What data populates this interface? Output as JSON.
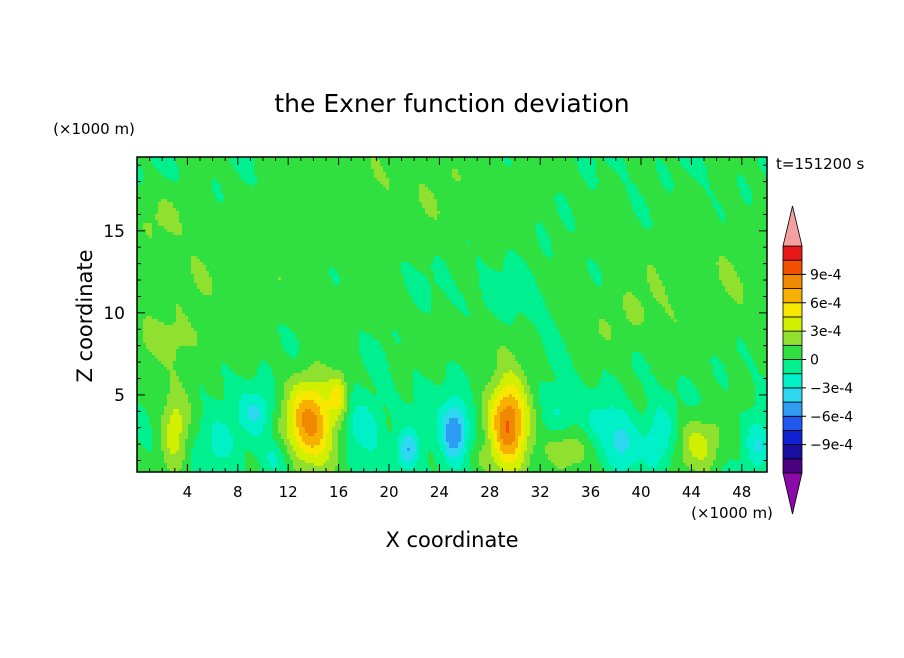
{
  "chart_data": {
    "type": "heatmap",
    "title": "the Exner function deviation",
    "xlabel": "X coordinate",
    "ylabel": "Z coordinate",
    "x_unit": "(×1000 m)",
    "y_unit": "(×1000 m)",
    "time_label": "t=151200 s",
    "xlim": [
      0,
      50
    ],
    "ylim": [
      0.3,
      19.5
    ],
    "x_ticks": [
      4,
      8,
      12,
      16,
      20,
      24,
      28,
      32,
      36,
      40,
      44,
      48
    ],
    "y_ticks": [
      5,
      10,
      15
    ],
    "colorbar": {
      "levels": [
        -0.0012,
        -0.00105,
        -0.0009,
        -0.00075,
        -0.0006,
        -0.00045,
        -0.0003,
        -0.00015,
        0,
        0.00015,
        0.0003,
        0.00045,
        0.0006,
        0.00075,
        0.0009,
        0.00105,
        0.0012
      ],
      "colors": [
        "#4B0082",
        "#1A10A0",
        "#1020D0",
        "#2058F0",
        "#2E9CF2",
        "#2ED8F0",
        "#00F0C8",
        "#00F090",
        "#30E040",
        "#90E030",
        "#D0F000",
        "#F8E800",
        "#F8B000",
        "#F08800",
        "#F05000",
        "#E81818"
      ],
      "under_color": "#8B0AA8",
      "over_color": "#F4A0A0",
      "labels": [
        "9e-4",
        "6e-4",
        "3e-4",
        "0",
        "−3e-4",
        "−6e-4",
        "−9e-4"
      ],
      "label_values": [
        0.0009,
        0.0006,
        0.0003,
        0,
        -0.0003,
        -0.0006,
        -0.0009
      ]
    },
    "features": [
      {
        "x": 29.5,
        "z": 3.3,
        "amp": 0.00095,
        "sx": 1.1,
        "sz": 1.9
      },
      {
        "x": 13.8,
        "z": 3.3,
        "amp": 0.0008,
        "sx": 1.4,
        "sz": 1.9
      },
      {
        "x": 3.0,
        "z": 3.0,
        "amp": 0.0004,
        "sx": 0.8,
        "sz": 1.8
      },
      {
        "x": 44.6,
        "z": 2.0,
        "amp": 0.00035,
        "sx": 1.3,
        "sz": 1.2
      },
      {
        "x": 34.0,
        "z": 1.5,
        "amp": 0.0003,
        "sx": 1.2,
        "sz": 0.9
      },
      {
        "x": 16.0,
        "z": 5.0,
        "amp": 0.0004,
        "sx": 0.5,
        "sz": 0.9
      },
      {
        "x": 25.2,
        "z": 2.8,
        "amp": -0.0006,
        "sx": 0.8,
        "sz": 1.4
      },
      {
        "x": 21.5,
        "z": 1.6,
        "amp": -0.00045,
        "sx": 0.6,
        "sz": 0.9
      },
      {
        "x": 9.5,
        "z": 4.0,
        "amp": -0.0003,
        "sx": 0.9,
        "sz": 1.0
      },
      {
        "x": 18.0,
        "z": 3.0,
        "amp": -0.0003,
        "sx": 1.0,
        "sz": 1.2
      },
      {
        "x": 38.5,
        "z": 2.0,
        "amp": -0.00035,
        "sx": 1.0,
        "sz": 1.2
      },
      {
        "x": 41.5,
        "z": 2.5,
        "amp": -0.0003,
        "sx": 0.8,
        "sz": 1.4
      },
      {
        "x": 49.3,
        "z": 2.0,
        "amp": -0.0003,
        "sx": 0.7,
        "sz": 1.1
      },
      {
        "x": 6.5,
        "z": 2.2,
        "amp": -0.0002,
        "sx": 1.2,
        "sz": 1.4
      },
      {
        "x": 33.5,
        "z": 4.0,
        "amp": -0.0002,
        "sx": 1.0,
        "sz": 1.0
      },
      {
        "x": 37.0,
        "z": 3.5,
        "amp": -0.00015,
        "sx": 1.0,
        "sz": 1.0
      },
      {
        "x": 11.0,
        "z": 1.2,
        "amp": -0.0002,
        "sx": 0.8,
        "sz": 0.8
      },
      {
        "x": 27.0,
        "z": 1.0,
        "amp": 0.00012,
        "sx": 1.2,
        "sz": 0.6
      },
      {
        "x": 22.0,
        "z": 17.5,
        "amp": 0.00013,
        "sx": 7.0,
        "sz": 2.5
      },
      {
        "x": 45.0,
        "z": 12.0,
        "amp": 0.00013,
        "sx": 6.0,
        "sz": 3.0
      },
      {
        "x": 9.0,
        "z": 13.0,
        "amp": 0.00011,
        "sx": 4.5,
        "sz": 2.0
      },
      {
        "x": 2.0,
        "z": 10.5,
        "amp": 0.00011,
        "sx": 2.5,
        "sz": 3.0
      },
      {
        "x": 4.0,
        "z": 8.3,
        "amp": 0.00011,
        "sx": 4.0,
        "sz": 0.9
      },
      {
        "x": 26.0,
        "z": 8.5,
        "amp": 0.00011,
        "sx": 3.0,
        "sz": 1.2
      },
      {
        "x": 17.0,
        "z": 10.3,
        "amp": 0.0001,
        "sx": 3.0,
        "sz": 1.0
      },
      {
        "x": 38.0,
        "z": 9.5,
        "amp": 0.0001,
        "sx": 3.0,
        "sz": 1.3
      },
      {
        "x": 2.0,
        "z": 16.0,
        "amp": 0.00011,
        "sx": 2.0,
        "sz": 1.2
      },
      {
        "x": 30.0,
        "z": 10.5,
        "amp": -6e-05,
        "sx": 4.0,
        "sz": 1.5
      }
    ]
  }
}
